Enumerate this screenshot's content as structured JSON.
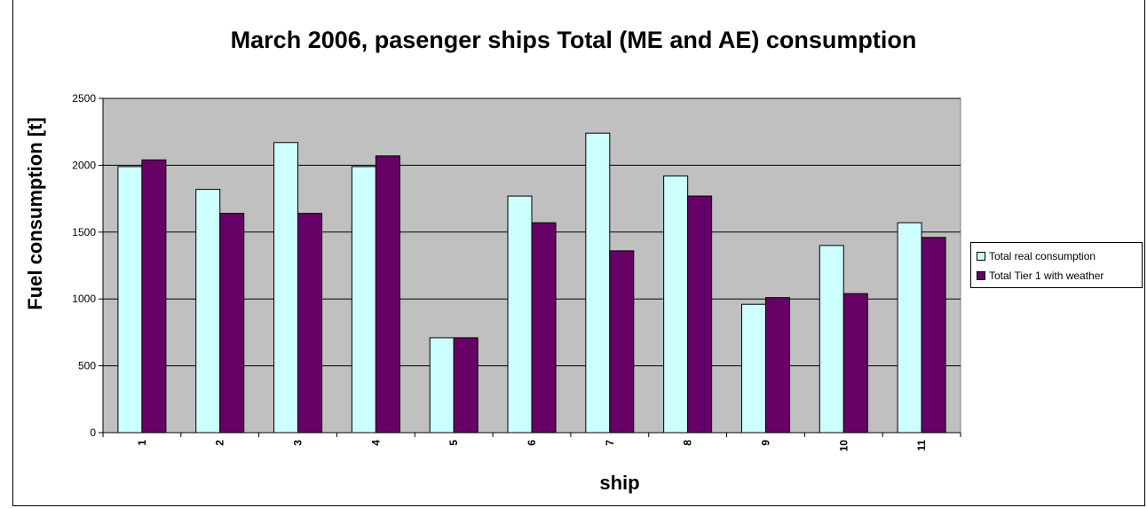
{
  "chart_data": {
    "type": "bar",
    "title": "March 2006, pasenger ships Total (ME and AE) consumption",
    "xlabel": "ship",
    "ylabel": "Fuel consumption [t]",
    "categories": [
      "1",
      "2",
      "3",
      "4",
      "5",
      "6",
      "7",
      "8",
      "9",
      "10",
      "11"
    ],
    "series": [
      {
        "name": "Total real consumption",
        "color": "#CCFFFF",
        "values": [
          1990,
          1820,
          2170,
          1990,
          710,
          1770,
          2240,
          1920,
          960,
          1400,
          1570
        ]
      },
      {
        "name": "Total Tier 1 with weather",
        "color": "#660066",
        "values": [
          2040,
          1640,
          1640,
          2070,
          710,
          1570,
          1360,
          1770,
          1010,
          1040,
          1460
        ]
      }
    ],
    "ylim": [
      0,
      2500
    ],
    "yticks": [
      0,
      500,
      1000,
      1500,
      2000,
      2500
    ],
    "grid": true,
    "plot_background": "#C0C0C0",
    "legend_position": "right"
  }
}
